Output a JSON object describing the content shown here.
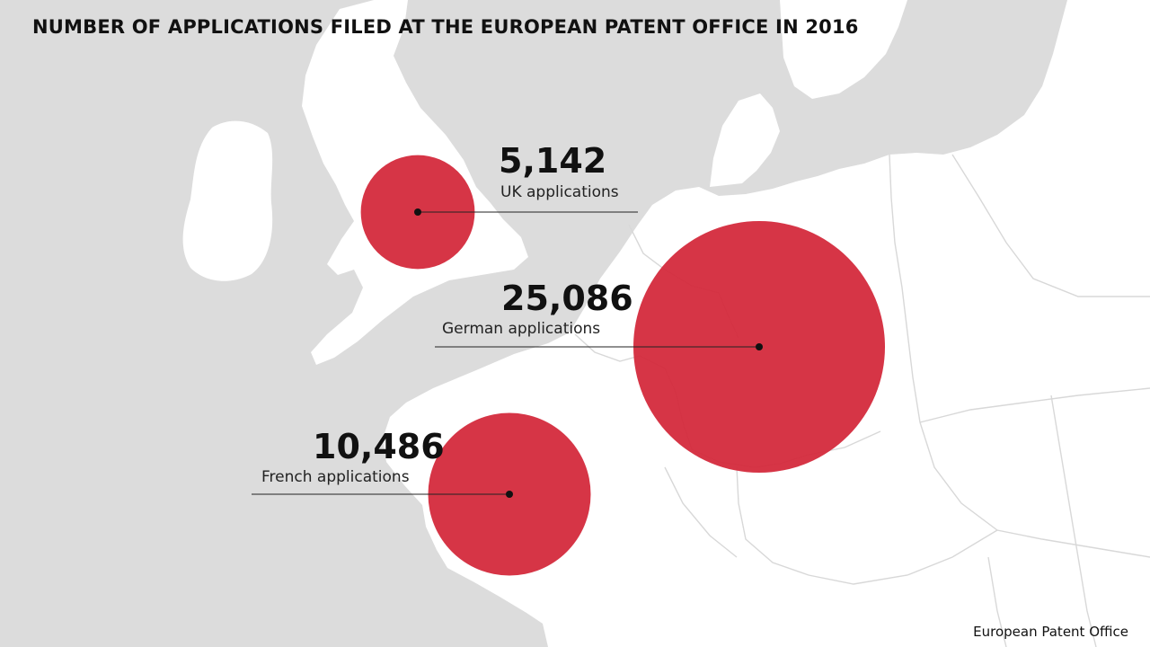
{
  "title": "NUMBER OF APPLICATIONS FILED AT THE EUROPEAN PATENT OFFICE IN 2016",
  "source": "European Patent Office",
  "colors": {
    "sea": "#dcdcdc",
    "land": "#ffffff",
    "bubble": "#d42a3c",
    "border": "#d8d8d8"
  },
  "bubbles": [
    {
      "id": "uk",
      "value": "5,142",
      "label": "UK applications",
      "count": 5142
    },
    {
      "id": "de",
      "value": "25,086",
      "label": "German applications",
      "count": 25086
    },
    {
      "id": "fr",
      "value": "10,486",
      "label": "French applications",
      "count": 10486
    }
  ]
}
